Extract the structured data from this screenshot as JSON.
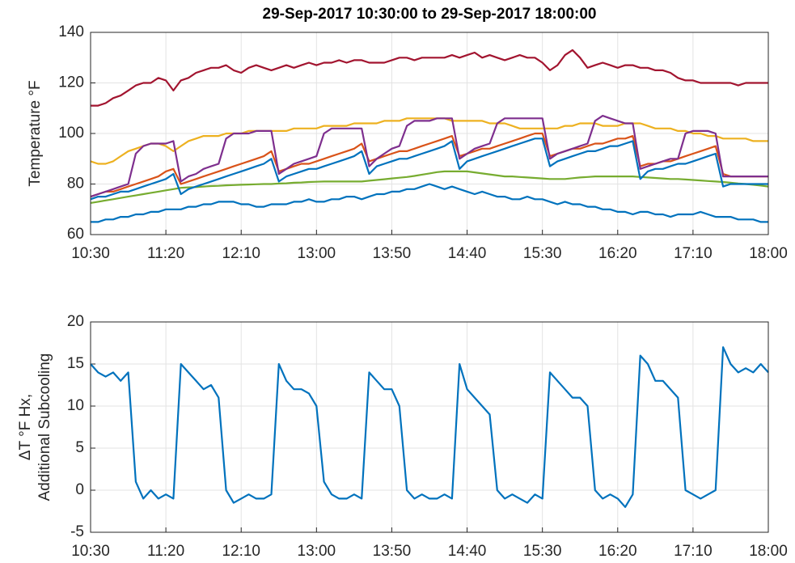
{
  "chart_data": [
    {
      "type": "line",
      "title": "29-Sep-2017 10:30:00 to 29-Sep-2017 18:00:00",
      "ylabel": [
        "Temperature °F"
      ],
      "x": [
        "10:30",
        "10:35",
        "10:40",
        "10:45",
        "10:50",
        "10:55",
        "11:00",
        "11:05",
        "11:10",
        "11:15",
        "11:20",
        "11:25",
        "11:30",
        "11:35",
        "11:40",
        "11:45",
        "11:50",
        "11:55",
        "12:00",
        "12:05",
        "12:10",
        "12:15",
        "12:20",
        "12:25",
        "12:30",
        "12:35",
        "12:40",
        "12:45",
        "12:50",
        "12:55",
        "13:00",
        "13:05",
        "13:10",
        "13:15",
        "13:20",
        "13:25",
        "13:30",
        "13:35",
        "13:40",
        "13:45",
        "13:50",
        "13:55",
        "14:00",
        "14:05",
        "14:10",
        "14:15",
        "14:20",
        "14:25",
        "14:30",
        "14:35",
        "14:40",
        "14:45",
        "14:50",
        "14:55",
        "15:00",
        "15:05",
        "15:10",
        "15:15",
        "15:20",
        "15:25",
        "15:30",
        "15:35",
        "15:40",
        "15:45",
        "15:50",
        "15:55",
        "16:00",
        "16:05",
        "16:10",
        "16:15",
        "16:20",
        "16:25",
        "16:30",
        "16:35",
        "16:40",
        "16:45",
        "16:50",
        "16:55",
        "17:00",
        "17:05",
        "17:10",
        "17:15",
        "17:20",
        "17:25",
        "17:30",
        "17:35",
        "17:40",
        "17:45",
        "17:50",
        "17:55",
        "18:00"
      ],
      "xlim": [
        "10:30",
        "18:00"
      ],
      "xticks": [
        "10:30",
        "11:20",
        "12:10",
        "13:00",
        "13:50",
        "14:40",
        "15:30",
        "16:20",
        "17:10",
        "18:00"
      ],
      "ylim": [
        60,
        140
      ],
      "yticks": [
        60,
        80,
        100,
        120,
        140
      ],
      "grid": true,
      "series": [
        {
          "color": "#0072bd",
          "values": [
            65,
            65,
            66,
            66,
            67,
            67,
            68,
            68,
            69,
            69,
            70,
            70,
            70,
            71,
            71,
            72,
            72,
            73,
            73,
            73,
            72,
            72,
            71,
            71,
            72,
            72,
            72,
            73,
            73,
            74,
            73,
            73,
            74,
            74,
            75,
            75,
            74,
            75,
            76,
            76,
            77,
            77,
            78,
            78,
            79,
            80,
            79,
            78,
            79,
            78,
            77,
            76,
            77,
            76,
            75,
            75,
            74,
            74,
            75,
            74,
            74,
            73,
            72,
            73,
            72,
            72,
            71,
            71,
            70,
            70,
            69,
            69,
            68,
            69,
            69,
            68,
            68,
            67,
            68,
            68,
            68,
            69,
            68,
            67,
            67,
            67,
            66,
            66,
            66,
            65,
            65
          ]
        },
        {
          "color": "#a2142f",
          "values": [
            111,
            111,
            112,
            114,
            115,
            117,
            119,
            120,
            120,
            122,
            121,
            117,
            121,
            122,
            124,
            125,
            126,
            126,
            127,
            125,
            124,
            126,
            127,
            126,
            125,
            126,
            127,
            126,
            127,
            128,
            127,
            128,
            128,
            129,
            128,
            129,
            129,
            128,
            128,
            128,
            129,
            130,
            130,
            129,
            130,
            130,
            130,
            130,
            131,
            130,
            131,
            132,
            130,
            131,
            130,
            129,
            130,
            131,
            130,
            130,
            128,
            125,
            127,
            131,
            133,
            130,
            126,
            127,
            128,
            127,
            126,
            127,
            127,
            126,
            126,
            125,
            125,
            124,
            122,
            121,
            121,
            120,
            120,
            120,
            120,
            120,
            119,
            120,
            120,
            120,
            120
          ]
        },
        {
          "color": "#edb120",
          "values": [
            89,
            88,
            88,
            89,
            91,
            93,
            94,
            95,
            96,
            96,
            95,
            93,
            95,
            97,
            98,
            99,
            99,
            99,
            100,
            100,
            100,
            101,
            101,
            101,
            101,
            101,
            101,
            102,
            102,
            102,
            102,
            103,
            103,
            103,
            103,
            104,
            104,
            104,
            104,
            105,
            105,
            105,
            106,
            106,
            106,
            106,
            106,
            106,
            105,
            105,
            105,
            105,
            105,
            104,
            104,
            104,
            103,
            102,
            102,
            102,
            102,
            102,
            102,
            103,
            103,
            104,
            104,
            104,
            103,
            103,
            103,
            104,
            104,
            104,
            103,
            102,
            102,
            102,
            101,
            101,
            100,
            100,
            99,
            99,
            98,
            98,
            98,
            98,
            97,
            97,
            97
          ]
        },
        {
          "color": "#77ac30",
          "values": [
            72.5,
            73,
            73.5,
            74,
            74.5,
            75,
            75.5,
            76,
            76.5,
            77,
            77.5,
            78,
            78.5,
            78.7,
            78.8,
            79,
            79.2,
            79.3,
            79.5,
            79.6,
            79.7,
            79.8,
            79.9,
            80,
            80,
            80.2,
            80.3,
            80.5,
            80.6,
            80.8,
            80.9,
            81,
            81,
            81,
            81,
            81,
            81,
            81.3,
            81.6,
            81.9,
            82.2,
            82.5,
            82.8,
            83.2,
            83.7,
            84.2,
            84.7,
            85,
            85,
            85,
            85,
            84.6,
            84.2,
            83.8,
            83.4,
            83,
            83,
            82.8,
            82.6,
            82.4,
            82.2,
            82,
            82,
            82,
            82.3,
            82.6,
            82.8,
            83,
            83,
            83,
            83,
            83,
            83,
            82.8,
            82.6,
            82.4,
            82.2,
            82,
            82,
            81.8,
            81.6,
            81.4,
            81.2,
            81,
            80.8,
            80.5,
            80.2,
            80,
            79.7,
            79.4,
            79
          ]
        },
        {
          "color": "#d95319",
          "values": [
            75,
            76,
            77,
            77,
            78,
            79,
            80,
            81,
            82,
            83,
            85,
            86,
            80,
            81,
            82,
            83,
            84,
            85,
            86,
            87,
            88,
            89,
            90,
            91,
            93,
            85,
            86,
            87,
            88,
            88,
            89,
            90,
            91,
            92,
            93,
            94,
            96,
            89,
            90,
            91,
            92,
            93,
            93,
            94,
            95,
            96,
            97,
            98,
            99,
            91,
            92,
            93,
            94,
            94,
            95,
            96,
            97,
            98,
            99,
            100,
            100,
            91,
            92,
            93,
            94,
            94,
            95,
            96,
            96,
            97,
            98,
            98,
            99,
            87,
            88,
            88,
            89,
            89,
            90,
            91,
            92,
            93,
            94,
            95,
            84,
            83,
            83,
            83,
            83,
            83,
            83
          ]
        },
        {
          "color": "#0072bd",
          "values": [
            74,
            75,
            75,
            76,
            77,
            77,
            78,
            79,
            80,
            81,
            82,
            84,
            76,
            78,
            79,
            80,
            81,
            82,
            83,
            84,
            85,
            86,
            87,
            88,
            90,
            81,
            83,
            84,
            85,
            86,
            86,
            87,
            88,
            89,
            90,
            91,
            93,
            84,
            87,
            88,
            89,
            90,
            90,
            91,
            92,
            93,
            94,
            95,
            97,
            86,
            89,
            90,
            91,
            92,
            93,
            94,
            95,
            96,
            97,
            98,
            98,
            87,
            89,
            90,
            91,
            92,
            93,
            93,
            94,
            95,
            95,
            96,
            97,
            82,
            85,
            86,
            86,
            87,
            88,
            88,
            89,
            90,
            91,
            92,
            79,
            80,
            80,
            80,
            80,
            80,
            80
          ]
        },
        {
          "color": "#7e2f8e",
          "values": [
            75,
            76,
            77,
            78,
            79,
            80,
            92,
            95,
            96,
            96,
            96,
            97,
            81,
            83,
            84,
            86,
            87,
            88,
            98,
            100,
            100,
            100,
            101,
            101,
            101,
            84,
            86,
            88,
            89,
            90,
            91,
            100,
            102,
            102,
            102,
            102,
            102,
            87,
            90,
            92,
            94,
            95,
            103,
            105,
            105,
            105,
            106,
            106,
            106,
            90,
            92,
            94,
            95,
            96,
            104,
            106,
            106,
            106,
            106,
            106,
            106,
            90,
            92,
            93,
            94,
            95,
            96,
            105,
            107,
            106,
            105,
            104,
            104,
            86,
            87,
            88,
            89,
            90,
            90,
            100,
            101,
            101,
            101,
            100,
            83,
            83,
            83,
            83,
            83,
            83,
            83
          ]
        }
      ]
    },
    {
      "type": "line",
      "ylabel": [
        "ΔT °F Hx,",
        "Additional Subcooling"
      ],
      "x": [
        "10:30",
        "10:35",
        "10:40",
        "10:45",
        "10:50",
        "10:55",
        "11:00",
        "11:05",
        "11:10",
        "11:15",
        "11:20",
        "11:25",
        "11:30",
        "11:35",
        "11:40",
        "11:45",
        "11:50",
        "11:55",
        "12:00",
        "12:05",
        "12:10",
        "12:15",
        "12:20",
        "12:25",
        "12:30",
        "12:35",
        "12:40",
        "12:45",
        "12:50",
        "12:55",
        "13:00",
        "13:05",
        "13:10",
        "13:15",
        "13:20",
        "13:25",
        "13:30",
        "13:35",
        "13:40",
        "13:45",
        "13:50",
        "13:55",
        "14:00",
        "14:05",
        "14:10",
        "14:15",
        "14:20",
        "14:25",
        "14:30",
        "14:35",
        "14:40",
        "14:45",
        "14:50",
        "14:55",
        "15:00",
        "15:05",
        "15:10",
        "15:15",
        "15:20",
        "15:25",
        "15:30",
        "15:35",
        "15:40",
        "15:45",
        "15:50",
        "15:55",
        "16:00",
        "16:05",
        "16:10",
        "16:15",
        "16:20",
        "16:25",
        "16:30",
        "16:35",
        "16:40",
        "16:45",
        "16:50",
        "16:55",
        "17:00",
        "17:05",
        "17:10",
        "17:15",
        "17:20",
        "17:25",
        "17:30",
        "17:35",
        "17:40",
        "17:45",
        "17:50",
        "17:55",
        "18:00"
      ],
      "xlim": [
        "10:30",
        "18:00"
      ],
      "xticks": [
        "10:30",
        "11:20",
        "12:10",
        "13:00",
        "13:50",
        "14:40",
        "15:30",
        "16:20",
        "17:10",
        "18:00"
      ],
      "ylim": [
        -5,
        20
      ],
      "yticks": [
        -5,
        0,
        5,
        10,
        15,
        20
      ],
      "grid": true,
      "series": [
        {
          "color": "#0072bd",
          "values": [
            15,
            14,
            13.5,
            14,
            13,
            14,
            1,
            -1,
            0,
            -1,
            -0.5,
            -1,
            15,
            14,
            13,
            12,
            12.5,
            11,
            0,
            -1.5,
            -1,
            -0.5,
            -1,
            -1,
            -0.5,
            15,
            13,
            12,
            12,
            11.5,
            10,
            1,
            -0.5,
            -1,
            -1,
            -0.5,
            -1,
            14,
            13,
            12,
            12,
            10,
            0,
            -1,
            -0.5,
            -1,
            -1,
            -0.5,
            -1,
            15,
            12,
            11,
            10,
            9,
            0,
            -1,
            -0.5,
            -1,
            -1.5,
            -0.5,
            -1,
            14,
            13,
            12,
            11,
            11,
            10,
            0,
            -1,
            -0.5,
            -1,
            -2,
            -0.5,
            16,
            15,
            13,
            13,
            12,
            11,
            0,
            -0.5,
            -1,
            -0.5,
            0,
            17,
            15,
            14,
            14.5,
            14,
            15,
            14
          ]
        }
      ]
    }
  ]
}
